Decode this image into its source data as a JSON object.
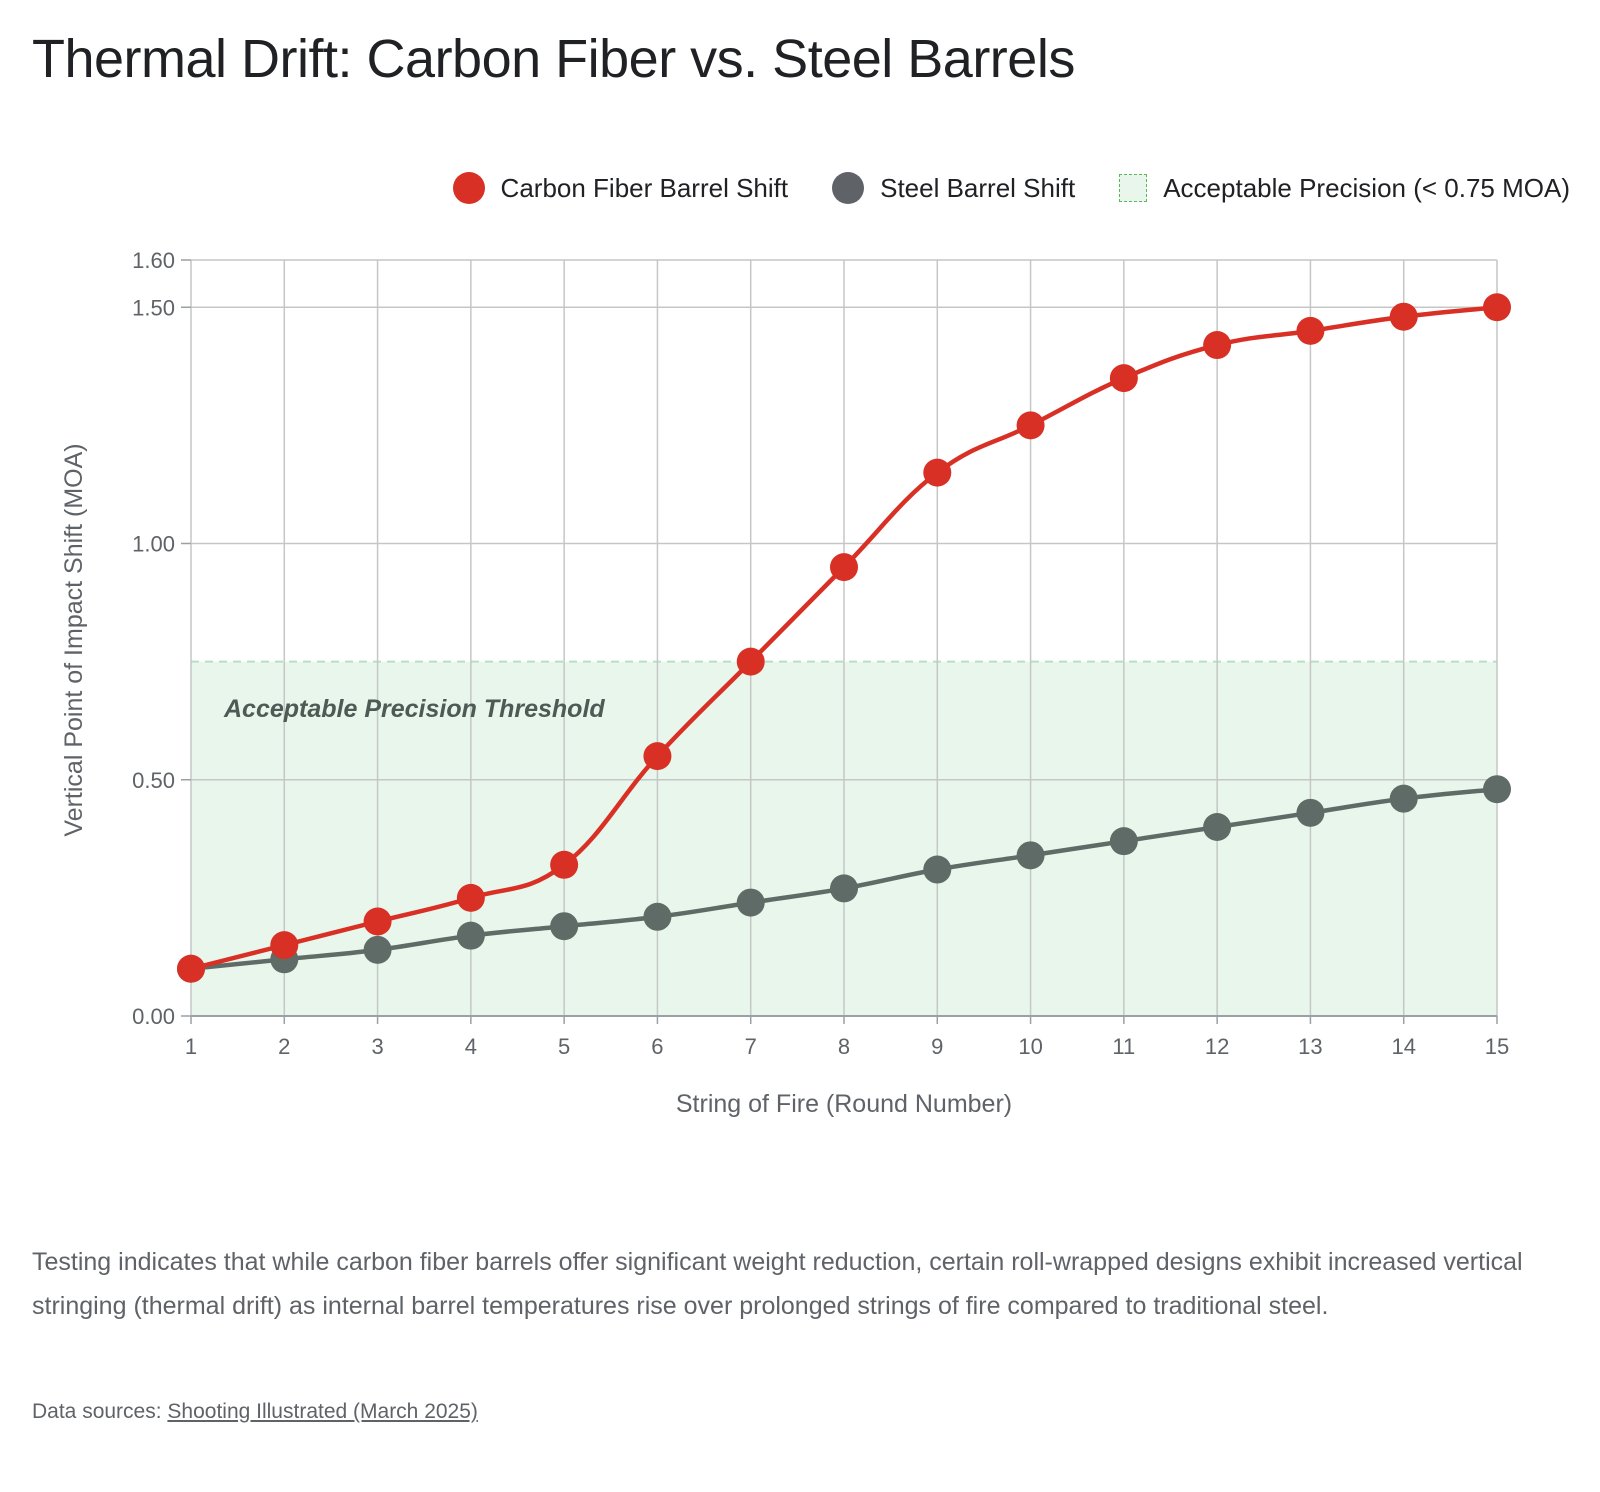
{
  "title": "Thermal Drift: Carbon Fiber vs. Steel Barrels",
  "legend": [
    {
      "label": "Carbon Fiber Barrel Shift",
      "color": "#d93025",
      "kind": "dot"
    },
    {
      "label": "Steel Barrel Shift",
      "color": "#5f6368",
      "kind": "dot"
    },
    {
      "label": "Acceptable Precision (< 0.75 MOA)",
      "color": "#5cb85c",
      "kind": "band"
    }
  ],
  "description": "Testing indicates that while carbon fiber barrels offer significant weight reduction, certain roll-wrapped designs exhibit increased vertical stringing (thermal drift) as internal barrel temperatures rise over prolonged strings of fire compared to traditional steel.",
  "sources": {
    "prefix": "Data sources: ",
    "link_text": "Shooting Illustrated (March 2025)"
  },
  "chart_data": {
    "type": "line",
    "title": "Thermal Drift: Carbon Fiber vs. Steel Barrels",
    "xlabel": "String of Fire (Round Number)",
    "ylabel": "Vertical Point of Impact Shift (MOA)",
    "x": [
      1,
      2,
      3,
      4,
      5,
      6,
      7,
      8,
      9,
      10,
      11,
      12,
      13,
      14,
      15
    ],
    "xlim": [
      1,
      15
    ],
    "ylim": [
      0,
      1.6
    ],
    "yticks": [
      0.0,
      0.5,
      1.0,
      1.5,
      1.6
    ],
    "ytick_labels": [
      "0.00",
      "0.50",
      "1.00",
      "1.50",
      "1.60"
    ],
    "grid": true,
    "legend_position": "top-right",
    "series": [
      {
        "name": "Carbon Fiber Barrel Shift",
        "color": "#d93025",
        "values": [
          0.1,
          0.15,
          0.2,
          0.25,
          0.32,
          0.55,
          0.75,
          0.95,
          1.15,
          1.25,
          1.35,
          1.42,
          1.45,
          1.48,
          1.5
        ]
      },
      {
        "name": "Steel Barrel Shift",
        "color": "#5f6b66",
        "values": [
          0.1,
          0.12,
          0.14,
          0.17,
          0.19,
          0.21,
          0.24,
          0.27,
          0.31,
          0.34,
          0.37,
          0.4,
          0.43,
          0.46,
          0.48
        ]
      }
    ],
    "bands": [
      {
        "label": "Acceptable Precision Threshold",
        "y0": 0,
        "y1": 0.75,
        "color": "#e9f6ec",
        "line_color": "#b7dfc1"
      }
    ]
  }
}
